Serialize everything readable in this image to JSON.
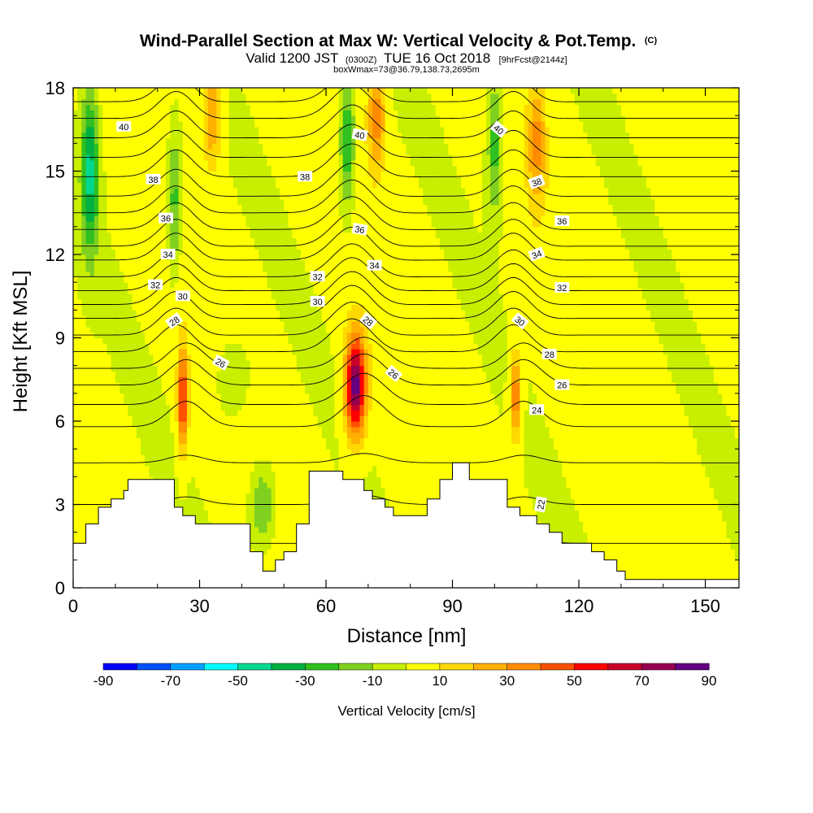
{
  "chart_data": {
    "type": "heatmap",
    "title_main": "Wind-Parallel Section at Max W: Vertical Velocity & Pot.Temp.",
    "title_mark": "(C)",
    "subtitle_a": "Valid 1200 JST",
    "subtitle_b": "(0300Z)",
    "subtitle_c": "TUE 16 Oct 2018",
    "subtitle_d": "[9hrFcst@2144z]",
    "subtitle_2": "boxWmax=73@36.79,138.73,2695m",
    "xlabel": "Distance [nm]",
    "ylabel": "Height [Kft MSL]",
    "xlim": [
      0,
      158
    ],
    "ylim": [
      0,
      18
    ],
    "x_ticks": [
      0,
      30,
      60,
      90,
      120,
      150
    ],
    "y_ticks": [
      0,
      3,
      6,
      9,
      12,
      15,
      18
    ],
    "colorbar": {
      "label": "Vertical Velocity [cm/s]",
      "tick_labels": [
        "-90",
        "-70",
        "-50",
        "-30",
        "-10",
        "10",
        "30",
        "50",
        "70",
        "90"
      ],
      "colors": [
        "#0000ff",
        "#0050ff",
        "#00a0ff",
        "#00ffff",
        "#00d890",
        "#00b040",
        "#30c020",
        "#80d020",
        "#c8ee00",
        "#ffff00",
        "#ffd800",
        "#ffb000",
        "#ff8c00",
        "#ff5000",
        "#ff0000",
        "#c8002a",
        "#960050",
        "#640080"
      ],
      "levels_per_color": 10
    },
    "velocity_series": {
      "name": "Vertical Velocity",
      "cores": [
        {
          "x": 26,
          "z": 6.8,
          "w": 55,
          "sx": 1.2,
          "sz": 1.8
        },
        {
          "x": 67,
          "z": 7.3,
          "w": 85,
          "sx": 2.4,
          "sz": 1.8
        },
        {
          "x": 105,
          "z": 6.9,
          "w": 40,
          "sx": 1.3,
          "sz": 1.6
        },
        {
          "x": 33,
          "z": 17,
          "w": 30,
          "sx": 2,
          "sz": 1.8
        },
        {
          "x": 72,
          "z": 17,
          "w": 35,
          "sx": 2,
          "sz": 1.8
        },
        {
          "x": 110,
          "z": 16,
          "w": 30,
          "sx": 2,
          "sz": 2
        },
        {
          "x": 4,
          "z": 15,
          "w": -45,
          "sx": 2,
          "sz": 3
        },
        {
          "x": 24,
          "z": 14,
          "w": -30,
          "sx": 1.6,
          "sz": 2.5
        },
        {
          "x": 65,
          "z": 16,
          "w": -35,
          "sx": 1.8,
          "sz": 2.5
        },
        {
          "x": 100,
          "z": 16,
          "w": -30,
          "sx": 1.8,
          "sz": 2.5
        },
        {
          "x": 45,
          "z": 3,
          "w": -25,
          "sx": 3,
          "sz": 1.5
        },
        {
          "x": 38,
          "z": 7.5,
          "w": -15,
          "sx": 4,
          "sz": 1.5
        }
      ]
    },
    "terrain_series": {
      "name": "Terrain",
      "x": [
        0,
        3,
        3,
        6,
        6,
        9,
        9,
        12,
        12,
        13,
        13,
        24,
        24,
        26,
        26,
        29,
        29,
        42,
        42,
        45,
        45,
        48,
        48,
        50,
        50,
        53,
        53,
        56,
        56,
        64,
        64,
        69,
        69,
        71,
        71,
        74,
        74,
        76,
        76,
        84,
        84,
        87,
        87,
        90,
        90,
        94,
        94,
        103,
        103,
        106,
        106,
        110,
        110,
        113,
        113,
        116,
        116,
        123,
        123,
        126,
        126,
        129,
        129,
        131,
        131,
        158
      ],
      "z": [
        1.6,
        1.6,
        2.3,
        2.3,
        2.9,
        2.9,
        3.2,
        3.2,
        3.5,
        3.5,
        3.9,
        3.9,
        2.9,
        2.9,
        2.6,
        2.6,
        2.3,
        2.3,
        1.3,
        1.3,
        0.6,
        0.6,
        1.0,
        1.0,
        1.3,
        1.3,
        2.3,
        2.3,
        4.2,
        4.2,
        3.9,
        3.9,
        3.5,
        3.5,
        3.2,
        3.2,
        2.9,
        2.9,
        2.6,
        2.6,
        3.2,
        3.2,
        3.9,
        3.9,
        4.5,
        4.5,
        3.9,
        3.9,
        2.9,
        2.9,
        2.6,
        2.6,
        2.3,
        2.3,
        2.0,
        2.0,
        1.6,
        1.6,
        1.3,
        1.3,
        1.0,
        1.0,
        0.6,
        0.6,
        0.3,
        0.3
      ]
    },
    "theta_series": {
      "name": "Pot.Temp.",
      "levels": [
        21,
        22,
        23,
        24,
        25,
        26,
        27,
        28,
        29,
        30,
        31,
        32,
        33,
        34,
        35,
        36,
        37,
        38,
        39,
        40,
        41,
        42,
        43,
        44
      ],
      "base_height": [
        1.6,
        3.0,
        4.5,
        5.8,
        6.6,
        7.3,
        7.9,
        8.5,
        9.1,
        9.7,
        10.2,
        10.7,
        11.2,
        11.8,
        12.3,
        12.9,
        13.5,
        14.1,
        14.8,
        15.5,
        16.2,
        16.9,
        17.5,
        18.1
      ],
      "labels": [
        {
          "text": "40",
          "x": 12,
          "z": 16.6,
          "angle": 0
        },
        {
          "text": "38",
          "x": 19,
          "z": 14.7,
          "angle": 0
        },
        {
          "text": "36",
          "x": 22,
          "z": 13.3,
          "angle": 0
        },
        {
          "text": "34",
          "x": 22.5,
          "z": 12.0,
          "angle": 0
        },
        {
          "text": "32",
          "x": 19.5,
          "z": 10.9,
          "angle": 0
        },
        {
          "text": "30",
          "x": 26,
          "z": 10.5,
          "angle": 0
        },
        {
          "text": "28",
          "x": 24,
          "z": 9.6,
          "angle": -35
        },
        {
          "text": "26",
          "x": 35,
          "z": 8.1,
          "angle": 30
        },
        {
          "text": "38",
          "x": 55,
          "z": 14.8,
          "angle": 0
        },
        {
          "text": "32",
          "x": 58,
          "z": 11.2,
          "angle": 0
        },
        {
          "text": "30",
          "x": 58,
          "z": 10.3,
          "angle": 0
        },
        {
          "text": "40",
          "x": 68,
          "z": 16.3,
          "angle": 10
        },
        {
          "text": "36",
          "x": 68,
          "z": 12.9,
          "angle": 10
        },
        {
          "text": "34",
          "x": 71.5,
          "z": 11.6,
          "angle": 0
        },
        {
          "text": "28",
          "x": 70,
          "z": 9.6,
          "angle": 40
        },
        {
          "text": "26",
          "x": 76,
          "z": 7.7,
          "angle": 40
        },
        {
          "text": "40",
          "x": 101,
          "z": 16.5,
          "angle": 40
        },
        {
          "text": "38",
          "x": 110,
          "z": 14.6,
          "angle": -20
        },
        {
          "text": "36",
          "x": 116,
          "z": 13.2,
          "angle": 0
        },
        {
          "text": "34",
          "x": 110,
          "z": 12.0,
          "angle": -20
        },
        {
          "text": "32",
          "x": 116,
          "z": 10.8,
          "angle": 0
        },
        {
          "text": "30",
          "x": 106,
          "z": 9.6,
          "angle": 40
        },
        {
          "text": "28",
          "x": 113,
          "z": 8.4,
          "angle": 0
        },
        {
          "text": "26",
          "x": 116,
          "z": 7.3,
          "angle": 0
        },
        {
          "text": "24",
          "x": 110,
          "z": 6.4,
          "angle": 0
        },
        {
          "text": "22",
          "x": 111,
          "z": 3.0,
          "angle": -80
        }
      ]
    },
    "grid": false
  }
}
